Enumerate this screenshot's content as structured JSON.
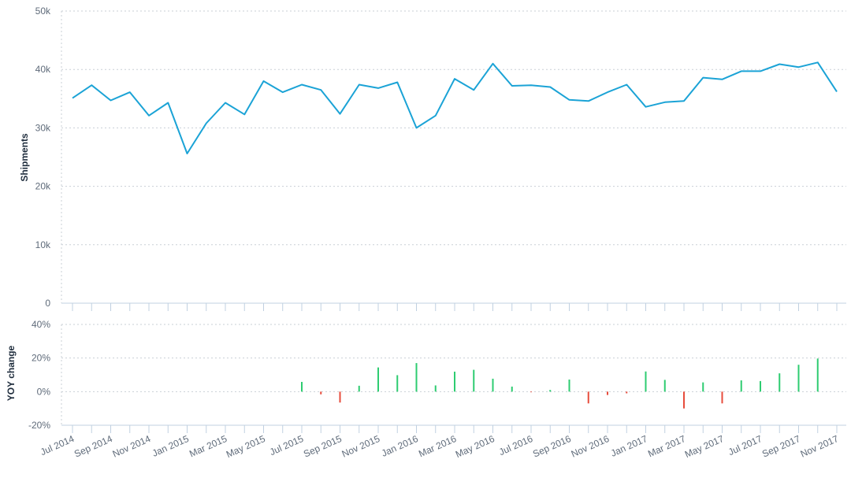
{
  "chart_data": [
    {
      "type": "line",
      "ylabel": "Shipments",
      "ylim": [
        0,
        50000
      ],
      "yticks": [
        "0",
        "10k",
        "20k",
        "30k",
        "40k",
        "50k"
      ],
      "color": "#1ba3d6",
      "grid": true,
      "x": [
        "Jul 2014",
        "Aug 2014",
        "Sep 2014",
        "Oct 2014",
        "Nov 2014",
        "Dec 2014",
        "Jan 2015",
        "Feb 2015",
        "Mar 2015",
        "Apr 2015",
        "May 2015",
        "Jun 2015",
        "Jul 2015",
        "Aug 2015",
        "Sep 2015",
        "Oct 2015",
        "Nov 2015",
        "Dec 2015",
        "Jan 2016",
        "Feb 2016",
        "Mar 2016",
        "Apr 2016",
        "May 2016",
        "Jun 2016",
        "Jul 2016",
        "Aug 2016",
        "Sep 2016",
        "Oct 2016",
        "Nov 2016",
        "Dec 2016",
        "Jan 2017",
        "Feb 2017",
        "Mar 2017",
        "Apr 2017",
        "May 2017",
        "Jun 2017",
        "Jul 2017",
        "Aug 2017",
        "Sep 2017",
        "Oct 2017",
        "Nov 2017"
      ],
      "values": [
        35100,
        37300,
        34700,
        36100,
        32100,
        34300,
        25600,
        30800,
        34300,
        32300,
        38000,
        36100,
        37400,
        36500,
        32400,
        37400,
        36800,
        37800,
        30000,
        32100,
        38400,
        36500,
        41000,
        37200,
        37300,
        37000,
        34800,
        34600,
        36100,
        37400,
        33600,
        34400,
        34600,
        38600,
        38300,
        39700,
        39700,
        40900,
        40400,
        41200,
        36200
      ]
    },
    {
      "type": "bar",
      "ylabel": "YOY change",
      "ylim": [
        -20,
        40
      ],
      "yticks": [
        "-20%",
        "0%",
        "20%",
        "40%"
      ],
      "positive_color": "#2ecc71",
      "negative_color": "#e74c3c",
      "grid": true,
      "x": [
        "Jul 2015",
        "Aug 2015",
        "Sep 2015",
        "Oct 2015",
        "Nov 2015",
        "Dec 2015",
        "Jan 2016",
        "Feb 2016",
        "Mar 2016",
        "Apr 2016",
        "May 2016",
        "Jun 2016",
        "Jul 2016",
        "Aug 2016",
        "Sep 2016",
        "Oct 2016",
        "Nov 2016",
        "Dec 2016",
        "Jan 2017",
        "Feb 2017",
        "Mar 2017",
        "Apr 2017",
        "May 2017",
        "Jun 2017",
        "Jul 2017",
        "Aug 2017",
        "Sep 2017",
        "Oct 2017",
        "Nov 2017"
      ],
      "values": [
        5.8,
        -1.6,
        -6.5,
        3.5,
        14.4,
        9.8,
        17.0,
        3.7,
        11.9,
        13.0,
        7.7,
        3.0,
        -0.3,
        1.0,
        7.2,
        -7.0,
        -2.0,
        -1.0,
        12.0,
        7.0,
        -10.0,
        5.5,
        -7.0,
        6.7,
        6.3,
        10.9,
        16.0,
        19.7,
        0
      ]
    }
  ],
  "x_axis": {
    "tick_labels": [
      "Jul 2014",
      "Sep 2014",
      "Nov 2014",
      "Jan 2015",
      "Mar 2015",
      "May 2015",
      "Jul 2015",
      "Sep 2015",
      "Nov 2015",
      "Jan 2016",
      "Mar 2016",
      "May 2016",
      "Jul 2016",
      "Sep 2016",
      "Nov 2016",
      "Jan 2017",
      "Mar 2017",
      "May 2017",
      "Jul 2017",
      "Sep 2017",
      "Nov 2017"
    ]
  }
}
